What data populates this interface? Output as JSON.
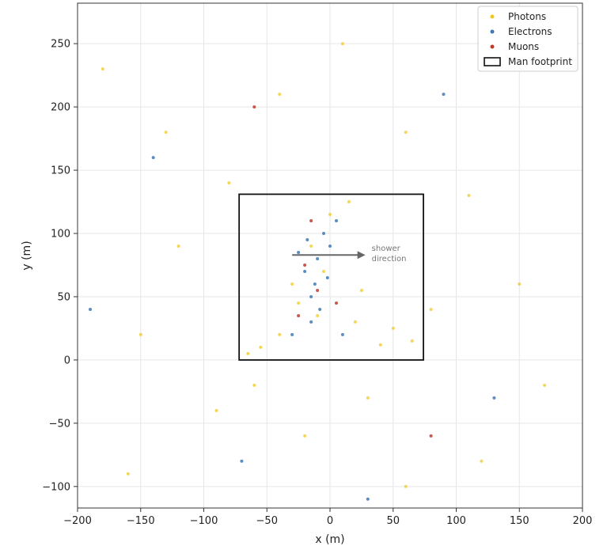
{
  "chart_data": {
    "type": "scatter",
    "title": "",
    "xlabel": "x (m)",
    "ylabel": "y (m)",
    "xlim": [
      -200,
      200
    ],
    "ylim": [
      -117,
      282
    ],
    "xticks": [
      -200,
      -150,
      -100,
      -50,
      0,
      50,
      100,
      150,
      200
    ],
    "yticks": [
      -100,
      -50,
      0,
      50,
      100,
      150,
      200,
      250
    ],
    "grid": true,
    "legend_position": "top-right",
    "series": [
      {
        "name": "Photons",
        "color": "#f2c81e",
        "points": [
          [
            -150,
            20
          ],
          [
            -120,
            90
          ],
          [
            -80,
            140
          ],
          [
            -40,
            210
          ],
          [
            10,
            250
          ],
          [
            60,
            180
          ],
          [
            110,
            130
          ],
          [
            150,
            60
          ],
          [
            170,
            -20
          ],
          [
            120,
            -80
          ],
          [
            60,
            -100
          ],
          [
            -20,
            -60
          ],
          [
            -90,
            -40
          ],
          [
            -160,
            -90
          ],
          [
            -180,
            230
          ],
          [
            140,
            240
          ],
          [
            80,
            40
          ],
          [
            -60,
            -20
          ],
          [
            30,
            -30
          ],
          [
            -130,
            180
          ],
          [
            -65,
            5
          ],
          [
            -40,
            20
          ],
          [
            -10,
            35
          ],
          [
            20,
            30
          ],
          [
            50,
            25
          ],
          [
            65,
            15
          ],
          [
            -30,
            60
          ],
          [
            -15,
            90
          ],
          [
            0,
            115
          ],
          [
            15,
            125
          ],
          [
            -5,
            70
          ],
          [
            -55,
            10
          ],
          [
            40,
            12
          ],
          [
            -25,
            45
          ],
          [
            25,
            55
          ]
        ]
      },
      {
        "name": "Electrons",
        "color": "#3f78b5",
        "points": [
          [
            -140,
            160
          ],
          [
            -70,
            -80
          ],
          [
            90,
            210
          ],
          [
            130,
            -30
          ],
          [
            -190,
            40
          ],
          [
            30,
            -110
          ],
          [
            -15,
            50
          ],
          [
            -10,
            80
          ],
          [
            -20,
            70
          ],
          [
            -5,
            100
          ],
          [
            -12,
            60
          ],
          [
            0,
            90
          ],
          [
            -18,
            95
          ],
          [
            -8,
            40
          ],
          [
            -25,
            85
          ],
          [
            5,
            110
          ],
          [
            -15,
            30
          ],
          [
            -30,
            20
          ],
          [
            10,
            20
          ],
          [
            -2,
            65
          ]
        ]
      },
      {
        "name": "Muons",
        "color": "#c0392b",
        "points": [
          [
            -60,
            200
          ],
          [
            80,
            -60
          ],
          [
            -20,
            75
          ],
          [
            -10,
            55
          ],
          [
            -15,
            110
          ],
          [
            5,
            45
          ],
          [
            -25,
            35
          ]
        ]
      }
    ],
    "footprint": {
      "name": "Man footprint",
      "x": [
        -72,
        74
      ],
      "y": [
        0,
        131
      ]
    },
    "annotation": {
      "text_lines": [
        "shower",
        "direction"
      ],
      "arrow_from": [
        -30,
        83
      ],
      "arrow_to": [
        28,
        83
      ]
    }
  }
}
